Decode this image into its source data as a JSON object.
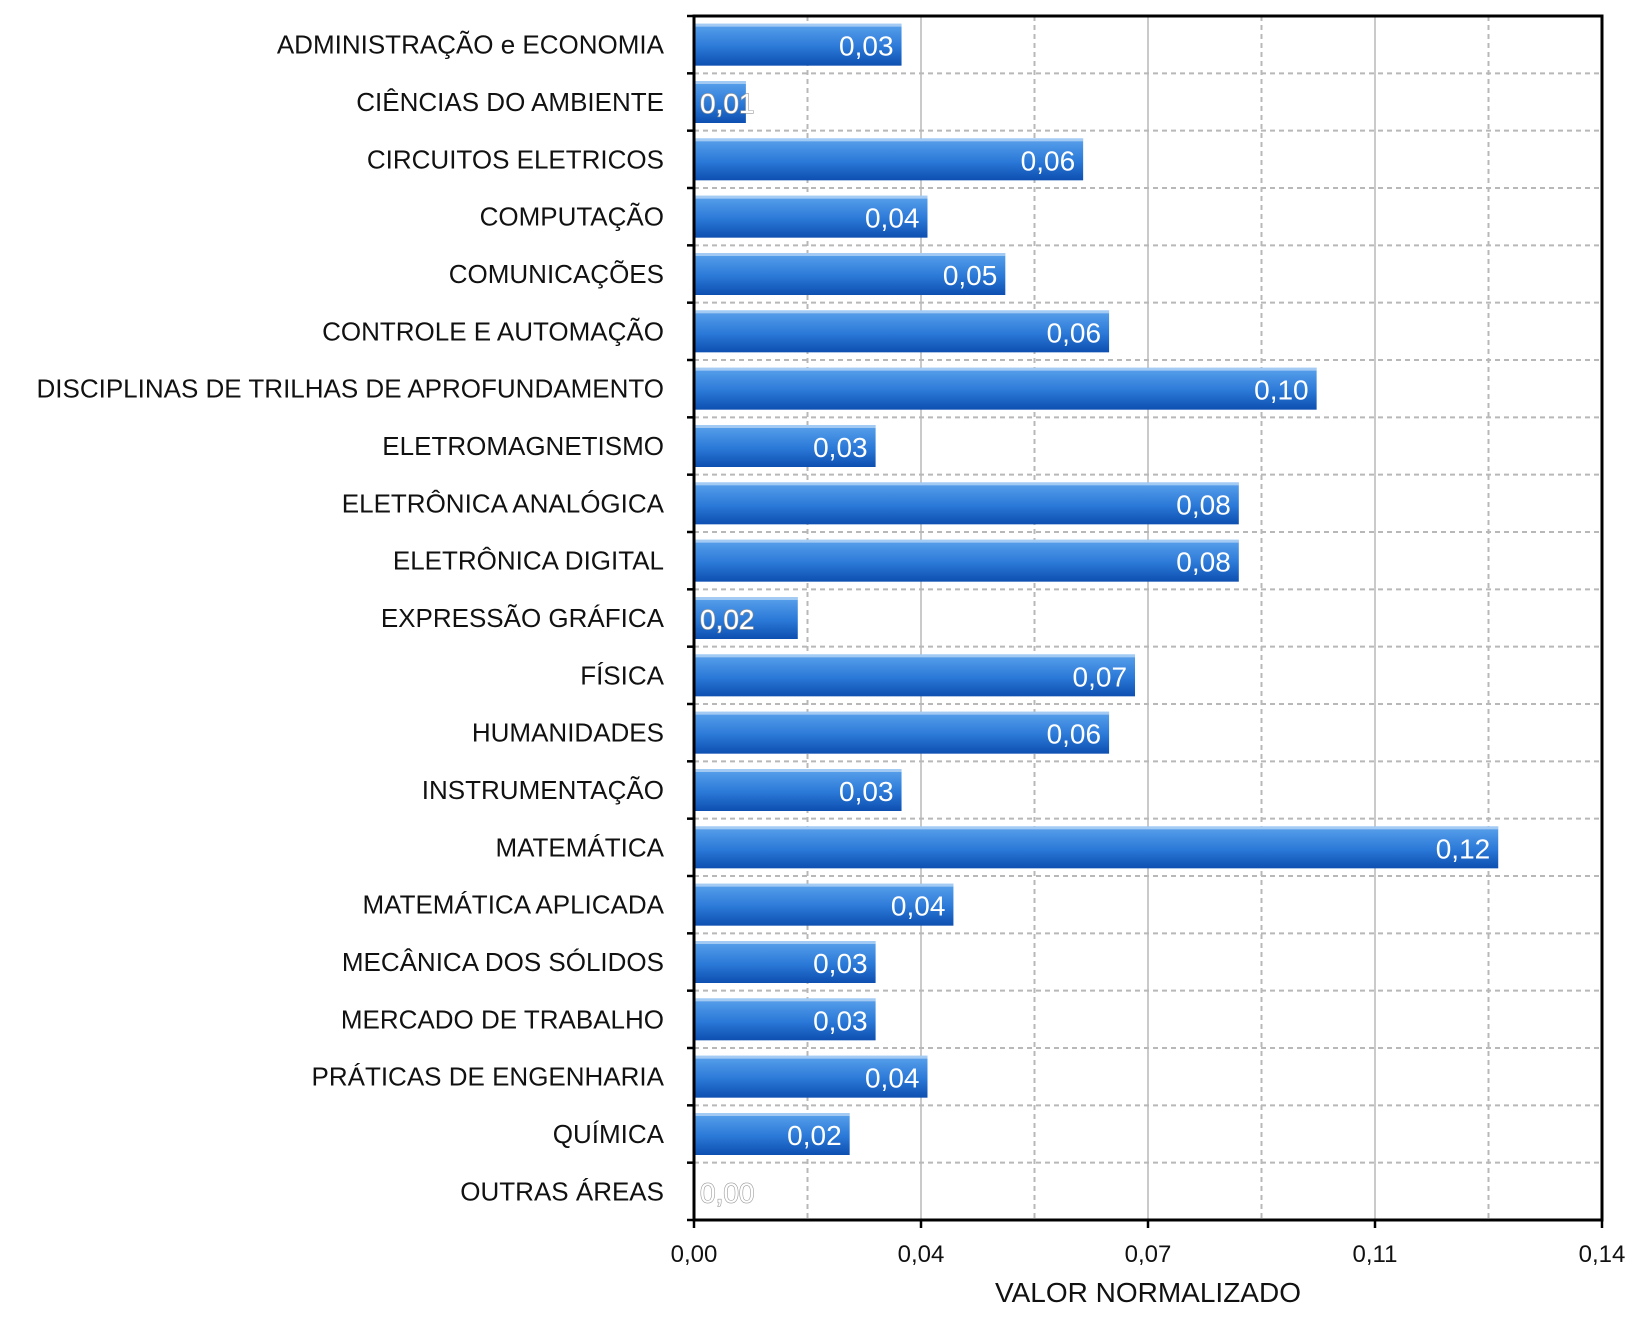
{
  "chart_data": {
    "type": "bar",
    "orientation": "horizontal",
    "title": "",
    "xlabel": "VALOR NORMALIZADO",
    "ylabel": "",
    "xlim": [
      0,
      0.14
    ],
    "x_ticks": [
      0,
      0.035,
      0.07,
      0.105,
      0.14
    ],
    "x_tick_labels": [
      "0,00",
      "0,04",
      "0,07",
      "0,11",
      "0,14"
    ],
    "grid": true,
    "legend": "none",
    "categories": [
      "ADMINISTRAÇÃO e ECONOMIA",
      "CIÊNCIAS DO AMBIENTE",
      "CIRCUITOS ELETRICOS",
      "COMPUTAÇÃO",
      "COMUNICAÇÕES",
      "CONTROLE E AUTOMAÇÃO",
      "DISCIPLINAS DE TRILHAS DE APROFUNDAMENTO",
      "ELETROMAGNETISMO",
      "ELETRÔNICA ANALÓGICA",
      "ELETRÔNICA DIGITAL",
      "EXPRESSÃO GRÁFICA",
      "FÍSICA",
      "HUMANIDADES",
      "INSTRUMENTAÇÃO",
      "MATEMÁTICA",
      "MATEMÁTICA APLICADA",
      "MECÂNICA DOS SÓLIDOS",
      "MERCADO DE TRABALHO",
      "PRÁTICAS DE ENGENHARIA",
      "QUÍMICA",
      "OUTRAS ÁREAS"
    ],
    "values": [
      0.032,
      0.008,
      0.06,
      0.036,
      0.048,
      0.064,
      0.096,
      0.028,
      0.084,
      0.084,
      0.016,
      0.068,
      0.064,
      0.032,
      0.124,
      0.04,
      0.028,
      0.028,
      0.036,
      0.024,
      0.0
    ],
    "value_labels": [
      "0,03",
      "0,01",
      "0,06",
      "0,04",
      "0,05",
      "0,06",
      "0,10",
      "0,03",
      "0,08",
      "0,08",
      "0,02",
      "0,07",
      "0,06",
      "0,03",
      "0,12",
      "0,04",
      "0,03",
      "0,03",
      "0,04",
      "0,02",
      "0,00"
    ],
    "colors": {
      "bar_top": "#5aa2ec",
      "bar_mid": "#2b79d8",
      "bar_bottom": "#0d4fb0",
      "grid": "#b8b8b8",
      "axis": "#000000"
    }
  }
}
